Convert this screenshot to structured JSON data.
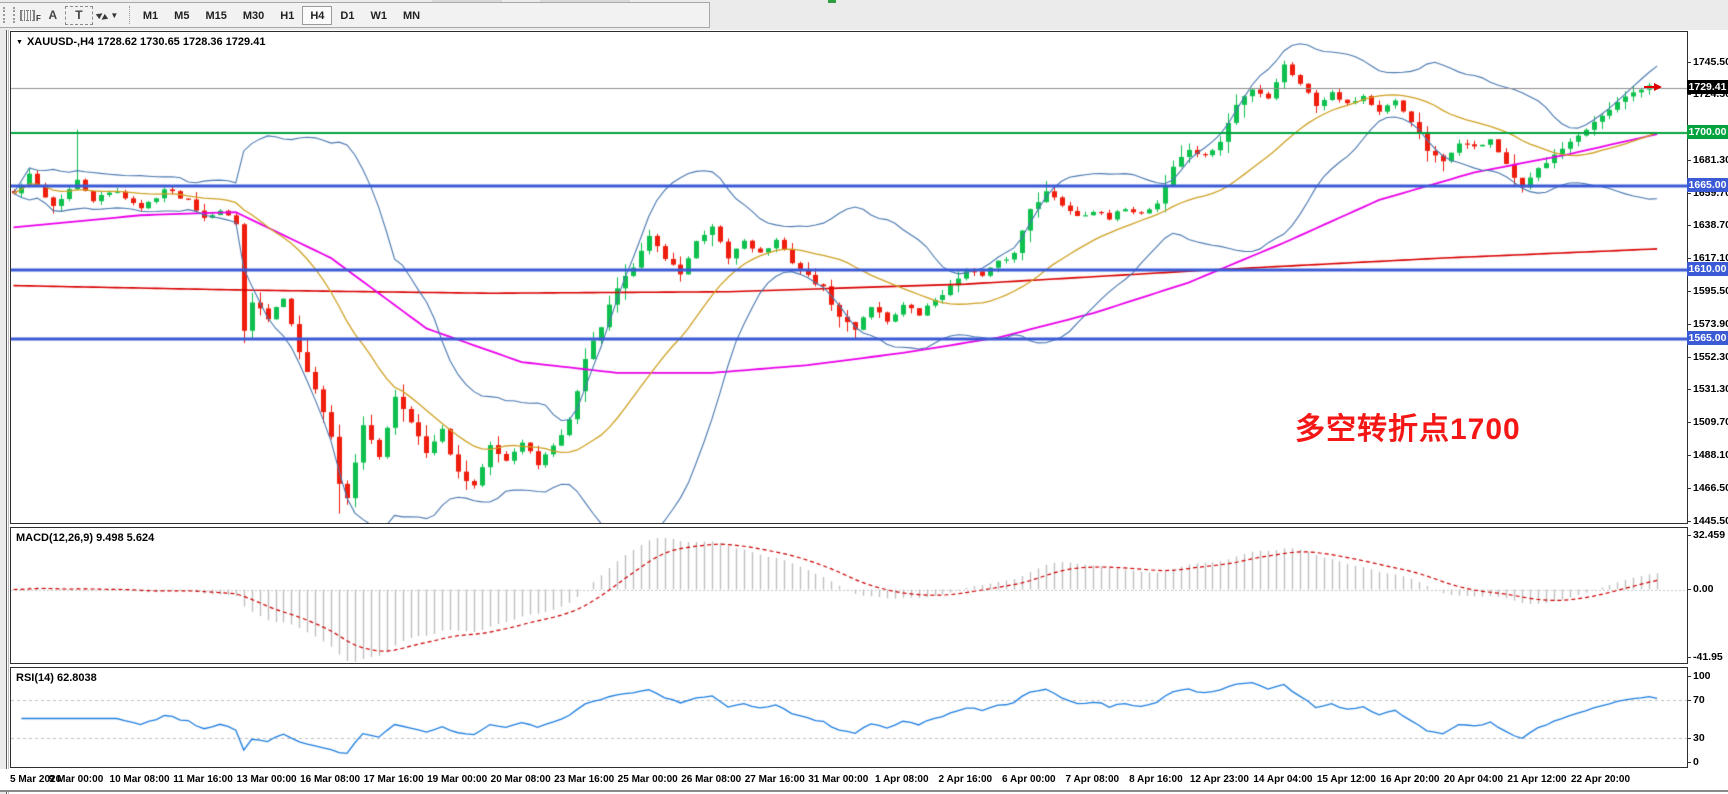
{
  "toolbar": {
    "grid_label": "F",
    "a_label": "A",
    "t_label": "T",
    "timeframes": [
      "M1",
      "M5",
      "M15",
      "M30",
      "H1",
      "H4",
      "D1",
      "W1",
      "MN"
    ],
    "active_timeframe": "H4"
  },
  "chart": {
    "title": "XAUUSD-,H4  1728.62 1730.65 1728.36 1729.41",
    "annotation": "多空转折点1700",
    "current_price": "1729.41"
  },
  "indicators": {
    "macd_label": "MACD(12,26,9) 9.498 5.624",
    "rsi_label": "RSI(14) 62.8038"
  },
  "chart_data": {
    "type": "candlestick",
    "symbol": "XAUUSD-",
    "timeframe": "H4",
    "current_bar": {
      "open": 1728.62,
      "high": 1730.65,
      "low": 1728.36,
      "close": 1729.41
    },
    "n_candles": 208,
    "price_anchors": [
      [
        0,
        1660
      ],
      [
        2,
        1672
      ],
      [
        5,
        1652
      ],
      [
        8,
        1668
      ],
      [
        10,
        1656
      ],
      [
        13,
        1662
      ],
      [
        16,
        1650
      ],
      [
        19,
        1663
      ],
      [
        22,
        1656
      ],
      [
        24,
        1645
      ],
      [
        26,
        1650
      ],
      [
        28,
        1640
      ],
      [
        29,
        1572
      ],
      [
        30,
        1590
      ],
      [
        32,
        1578
      ],
      [
        34,
        1592
      ],
      [
        36,
        1558
      ],
      [
        38,
        1532
      ],
      [
        40,
        1502
      ],
      [
        41,
        1470
      ],
      [
        42,
        1462
      ],
      [
        44,
        1508
      ],
      [
        46,
        1488
      ],
      [
        48,
        1528
      ],
      [
        50,
        1512
      ],
      [
        52,
        1490
      ],
      [
        54,
        1505
      ],
      [
        56,
        1477
      ],
      [
        58,
        1468
      ],
      [
        60,
        1497
      ],
      [
        62,
        1486
      ],
      [
        64,
        1497
      ],
      [
        66,
        1484
      ],
      [
        68,
        1494
      ],
      [
        70,
        1512
      ],
      [
        72,
        1552
      ],
      [
        74,
        1574
      ],
      [
        76,
        1598
      ],
      [
        78,
        1612
      ],
      [
        80,
        1633
      ],
      [
        82,
        1618
      ],
      [
        84,
        1608
      ],
      [
        86,
        1628
      ],
      [
        88,
        1637
      ],
      [
        90,
        1618
      ],
      [
        92,
        1630
      ],
      [
        94,
        1621
      ],
      [
        96,
        1629
      ],
      [
        98,
        1616
      ],
      [
        100,
        1606
      ],
      [
        102,
        1598
      ],
      [
        104,
        1579
      ],
      [
        106,
        1572
      ],
      [
        108,
        1587
      ],
      [
        110,
        1577
      ],
      [
        112,
        1587
      ],
      [
        114,
        1581
      ],
      [
        116,
        1591
      ],
      [
        118,
        1599
      ],
      [
        120,
        1611
      ],
      [
        122,
        1606
      ],
      [
        124,
        1615
      ],
      [
        126,
        1621
      ],
      [
        128,
        1651
      ],
      [
        130,
        1661
      ],
      [
        132,
        1653
      ],
      [
        134,
        1646
      ],
      [
        136,
        1649
      ],
      [
        138,
        1643
      ],
      [
        140,
        1651
      ],
      [
        142,
        1647
      ],
      [
        144,
        1654
      ],
      [
        146,
        1678
      ],
      [
        148,
        1689
      ],
      [
        150,
        1684
      ],
      [
        152,
        1694
      ],
      [
        154,
        1718
      ],
      [
        156,
        1729
      ],
      [
        158,
        1723
      ],
      [
        160,
        1744
      ],
      [
        162,
        1733
      ],
      [
        164,
        1718
      ],
      [
        166,
        1727
      ],
      [
        168,
        1719
      ],
      [
        170,
        1724
      ],
      [
        172,
        1713
      ],
      [
        174,
        1720
      ],
      [
        176,
        1708
      ],
      [
        178,
        1688
      ],
      [
        180,
        1680
      ],
      [
        182,
        1694
      ],
      [
        184,
        1690
      ],
      [
        186,
        1696
      ],
      [
        188,
        1678
      ],
      [
        190,
        1663
      ],
      [
        192,
        1676
      ],
      [
        194,
        1687
      ],
      [
        196,
        1694
      ],
      [
        198,
        1701
      ],
      [
        200,
        1710
      ],
      [
        202,
        1719
      ],
      [
        204,
        1726
      ],
      [
        206,
        1731
      ],
      [
        207,
        1729.41
      ]
    ],
    "wick_overrides": [
      {
        "i": 8,
        "high": 1702
      },
      {
        "i": 41,
        "low": 1451
      },
      {
        "i": 160,
        "high": 1747
      }
    ],
    "ma_magenta": [
      [
        0,
        1638
      ],
      [
        16,
        1646
      ],
      [
        28,
        1648
      ],
      [
        40,
        1618
      ],
      [
        52,
        1572
      ],
      [
        64,
        1550
      ],
      [
        76,
        1543
      ],
      [
        88,
        1543
      ],
      [
        100,
        1548
      ],
      [
        112,
        1556
      ],
      [
        124,
        1566
      ],
      [
        136,
        1582
      ],
      [
        148,
        1602
      ],
      [
        160,
        1628
      ],
      [
        172,
        1656
      ],
      [
        184,
        1674
      ],
      [
        196,
        1686
      ],
      [
        207,
        1699
      ]
    ],
    "ma_red": [
      [
        0,
        1600
      ],
      [
        30,
        1597
      ],
      [
        60,
        1595
      ],
      [
        90,
        1596
      ],
      [
        120,
        1601
      ],
      [
        150,
        1610
      ],
      [
        180,
        1618
      ],
      [
        207,
        1624
      ]
    ],
    "price_axis_ticks": [
      "1745.50",
      "1724.50",
      "1681.30",
      "1659.70",
      "1638.70",
      "1617.10",
      "1595.50",
      "1573.90",
      "1552.30",
      "1531.30",
      "1509.70",
      "1488.10",
      "1466.50",
      "1445.50"
    ],
    "levels": [
      {
        "label": "1700.00",
        "price": 1700.0,
        "color": "#00a33e",
        "width": 2
      },
      {
        "label": "1665.00",
        "price": 1665.0,
        "color": "#3a5ad6",
        "width": 3
      },
      {
        "label": "1610.00",
        "price": 1610.0,
        "color": "#3a5ad6",
        "width": 3
      },
      {
        "label": "1565.00",
        "price": 1565.0,
        "color": "#3a5ad6",
        "width": 3
      }
    ],
    "current_price_line": {
      "label": "1729.41",
      "price": 1729.41,
      "line_color": "#909090",
      "box_color": "#000000"
    },
    "macd": {
      "values": "9.498 5.624",
      "ticks": [
        32.459,
        0.0,
        -41.95
      ],
      "tick_labels": [
        "32.459",
        "0.00",
        "-41.95"
      ]
    },
    "rsi": {
      "value": "62.8038",
      "ticks": [
        100,
        70,
        30,
        0
      ],
      "tick_labels": [
        "100",
        "70",
        "30",
        "0"
      ],
      "levels": [
        70,
        30
      ]
    },
    "time_labels": [
      "5 Mar 2020",
      "9 Mar 00:00",
      "10 Mar 08:00",
      "11 Mar 16:00",
      "13 Mar 00:00",
      "16 Mar 08:00",
      "17 Mar 16:00",
      "19 Mar 00:00",
      "20 Mar 08:00",
      "23 Mar 16:00",
      "25 Mar 00:00",
      "26 Mar 08:00",
      "27 Mar 16:00",
      "31 Mar 00:00",
      "1 Apr 08:00",
      "2 Apr 16:00",
      "6 Apr 00:00",
      "7 Apr 08:00",
      "8 Apr 16:00",
      "12 Apr 23:00",
      "14 Apr 04:00",
      "15 Apr 12:00",
      "16 Apr 20:00",
      "20 Apr 04:00",
      "21 Apr 12:00",
      "22 Apr 20:00"
    ],
    "colors": {
      "bull": "#0ec14e",
      "bear": "#ee1d0d",
      "bollinger": "#4a78b0",
      "sma20": "#cfa224",
      "ma_magenta": "#ea00ea",
      "ma_red": "#d90000",
      "macd_hist": "#c0c0c0",
      "macd_signal": "#cc0000",
      "rsi_line": "#1f7fe0",
      "dashed_level": "#c0c0c0"
    }
  }
}
